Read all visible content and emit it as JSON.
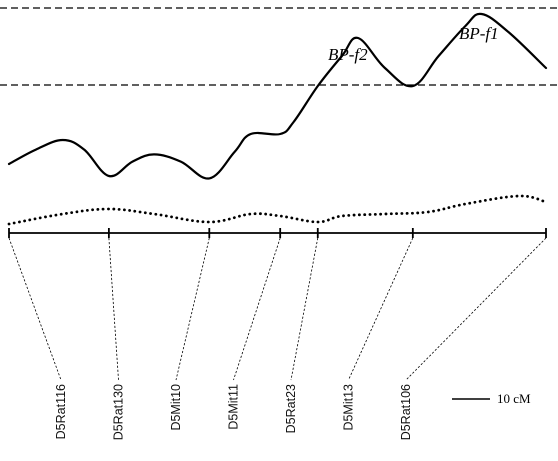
{
  "chart_data": {
    "type": "line",
    "title": "",
    "xlabel": "",
    "ylabel": "",
    "grid": false,
    "x_unit": "cM",
    "thresholds": [
      {
        "level": "upper",
        "style": "dashed"
      },
      {
        "level": "lower",
        "style": "dashed"
      }
    ],
    "markers": [
      {
        "name": "D5Rat116",
        "position_cM": 0.0
      },
      {
        "name": "D5Rat130",
        "position_cM": 18.6
      },
      {
        "name": "D5Mit10",
        "position_cM": 37.3
      },
      {
        "name": "D5Mit11",
        "position_cM": 50.5
      },
      {
        "name": "D5Rat23",
        "position_cM": 57.5
      },
      {
        "name": "D5Mit13",
        "position_cM": 75.2
      },
      {
        "name": "D5Rat106",
        "position_cM": 100.0
      }
    ],
    "series": [
      {
        "style": "solid",
        "points": [
          [
            0,
            0.3
          ],
          [
            5,
            0.42
          ],
          [
            10,
            0.5
          ],
          [
            14,
            0.42
          ],
          [
            18.6,
            0.2
          ],
          [
            23,
            0.32
          ],
          [
            27,
            0.38
          ],
          [
            32,
            0.32
          ],
          [
            37.3,
            0.18
          ],
          [
            42,
            0.4
          ],
          [
            45,
            0.55
          ],
          [
            50.5,
            0.55
          ],
          [
            53,
            0.65
          ],
          [
            57.5,
            0.95
          ],
          [
            62,
            1.2
          ],
          [
            65,
            1.35
          ],
          [
            70,
            1.1
          ],
          [
            75.2,
            0.95
          ],
          [
            80,
            1.2
          ],
          [
            85,
            1.45
          ],
          [
            88,
            1.55
          ],
          [
            93,
            1.4
          ],
          [
            100,
            1.1
          ]
        ]
      },
      {
        "style": "dotted",
        "points": [
          [
            0,
            0.1
          ],
          [
            10,
            0.2
          ],
          [
            18.6,
            0.25
          ],
          [
            27,
            0.2
          ],
          [
            37.3,
            0.12
          ],
          [
            45,
            0.2
          ],
          [
            50.5,
            0.18
          ],
          [
            57.5,
            0.12
          ],
          [
            62,
            0.18
          ],
          [
            70,
            0.2
          ],
          [
            78,
            0.22
          ],
          [
            85,
            0.3
          ],
          [
            95,
            0.38
          ],
          [
            100,
            0.32
          ]
        ]
      }
    ],
    "annotations": [
      {
        "text": "BP-f2",
        "at_cM": 65
      },
      {
        "text": "BP-f1",
        "at_cM": 90
      }
    ],
    "scale_bar": {
      "length_cM": 10,
      "label": "10 cM"
    }
  }
}
